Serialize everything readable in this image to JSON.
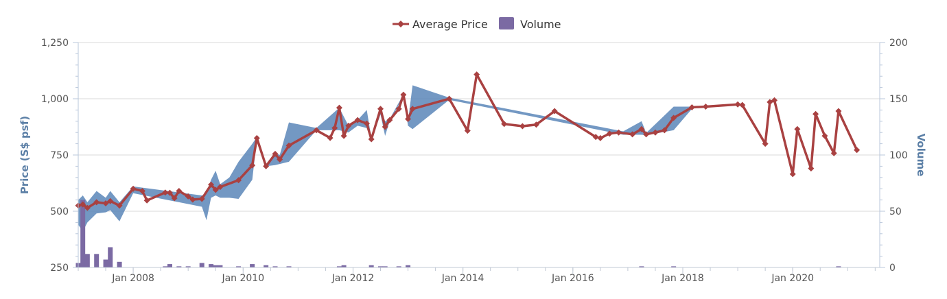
{
  "legend": {
    "price_label": "Average Price",
    "volume_label": "Volume"
  },
  "colors": {
    "price": "#a94141",
    "band": "#5b86b8",
    "volume": "#7b6aa3",
    "grid": "#d8d8d8",
    "axis": "#b9c7db",
    "axis_title": "#5b7fa6"
  },
  "chart_data": {
    "type": "line",
    "x_axis": {
      "type": "date",
      "range": [
        "2007-01-01",
        "2021-08-01"
      ],
      "tick_labels": [
        "Jan 2008",
        "Jan 2010",
        "Jan 2012",
        "Jan 2014",
        "Jan 2016",
        "Jan 2018",
        "Jan 2020"
      ]
    },
    "y_axis_left": {
      "label": "Price (S$ psf)",
      "range": [
        250,
        1250
      ],
      "ticks": [
        "250",
        "500",
        "750",
        "1,000",
        "1,250"
      ]
    },
    "y_axis_right": {
      "label": "Volume",
      "range": [
        0,
        200
      ],
      "ticks": [
        "0",
        "50",
        "100",
        "150",
        "200"
      ]
    },
    "grid": true,
    "legend_position": "top-center",
    "series": [
      {
        "name": "Average Price",
        "kind": "line-with-markers",
        "points": [
          [
            "2007-01",
            525
          ],
          [
            "2007-02",
            530
          ],
          [
            "2007-03",
            515
          ],
          [
            "2007-05",
            540
          ],
          [
            "2007-07",
            535
          ],
          [
            "2007-08",
            545
          ],
          [
            "2007-10",
            525
          ],
          [
            "2008-01",
            600
          ],
          [
            "2008-03",
            590
          ],
          [
            "2008-04",
            548
          ],
          [
            "2008-08",
            583
          ],
          [
            "2008-09",
            582
          ],
          [
            "2008-10",
            558
          ],
          [
            "2008-11",
            590
          ],
          [
            "2009-01",
            566
          ],
          [
            "2009-02",
            552
          ],
          [
            "2009-04",
            555
          ],
          [
            "2009-06",
            618
          ],
          [
            "2009-07",
            595
          ],
          [
            "2009-08",
            608
          ],
          [
            "2009-12",
            638
          ],
          [
            "2010-03",
            704
          ],
          [
            "2010-04",
            825
          ],
          [
            "2010-06",
            700
          ],
          [
            "2010-08",
            755
          ],
          [
            "2010-09",
            730
          ],
          [
            "2010-11",
            792
          ],
          [
            "2011-05",
            860
          ],
          [
            "2011-08",
            826
          ],
          [
            "2011-09",
            870
          ],
          [
            "2011-10",
            960
          ],
          [
            "2011-11",
            835
          ],
          [
            "2011-12",
            880
          ],
          [
            "2012-02",
            905
          ],
          [
            "2012-04",
            890
          ],
          [
            "2012-05",
            820
          ],
          [
            "2012-07",
            955
          ],
          [
            "2012-08",
            875
          ],
          [
            "2012-09",
            905
          ],
          [
            "2012-11",
            955
          ],
          [
            "2012-12",
            1018
          ],
          [
            "2013-01",
            910
          ],
          [
            "2013-02",
            955
          ],
          [
            "2013-10",
            1000
          ],
          [
            "2014-02",
            858
          ],
          [
            "2014-04",
            1108
          ],
          [
            "2014-10",
            888
          ],
          [
            "2015-02",
            878
          ],
          [
            "2015-05",
            885
          ],
          [
            "2015-09",
            945
          ],
          [
            "2016-06",
            830
          ],
          [
            "2016-07",
            825
          ],
          [
            "2016-09",
            845
          ],
          [
            "2016-11",
            850
          ],
          [
            "2017-02",
            842
          ],
          [
            "2017-04",
            865
          ],
          [
            "2017-05",
            842
          ],
          [
            "2017-07",
            850
          ],
          [
            "2017-09",
            860
          ],
          [
            "2017-11",
            915
          ],
          [
            "2018-03",
            962
          ],
          [
            "2018-06",
            965
          ],
          [
            "2019-01",
            975
          ],
          [
            "2019-02",
            972
          ],
          [
            "2019-07",
            800
          ],
          [
            "2019-08",
            985
          ],
          [
            "2019-09",
            993
          ],
          [
            "2020-01",
            665
          ],
          [
            "2020-02",
            865
          ],
          [
            "2020-05",
            690
          ],
          [
            "2020-06",
            932
          ],
          [
            "2020-08",
            835
          ],
          [
            "2020-10",
            758
          ],
          [
            "2020-11",
            945
          ],
          [
            "2021-03",
            772
          ]
        ]
      },
      {
        "kind": "range-band",
        "points": [
          [
            "2007-01",
            440,
            550
          ],
          [
            "2007-02",
            410,
            570
          ],
          [
            "2007-03",
            450,
            540
          ],
          [
            "2007-05",
            490,
            590
          ],
          [
            "2007-07",
            495,
            560
          ],
          [
            "2007-08",
            505,
            590
          ],
          [
            "2007-10",
            455,
            540
          ],
          [
            "2008-01",
            580,
            610
          ],
          [
            "2009-04",
            520,
            570
          ],
          [
            "2009-05",
            460,
            580
          ],
          [
            "2009-06",
            560,
            640
          ],
          [
            "2009-07",
            570,
            680
          ],
          [
            "2009-08",
            560,
            620
          ],
          [
            "2009-10",
            560,
            650
          ],
          [
            "2009-12",
            555,
            720
          ],
          [
            "2010-03",
            640,
            800
          ],
          [
            "2010-04",
            820,
            830
          ],
          [
            "2010-06",
            700,
            710
          ],
          [
            "2010-08",
            705,
            760
          ],
          [
            "2010-09",
            710,
            750
          ],
          [
            "2010-11",
            720,
            895
          ],
          [
            "2011-05",
            860,
            870
          ],
          [
            "2011-10",
            860,
            960
          ],
          [
            "2011-12",
            850,
            880
          ],
          [
            "2012-02",
            880,
            905
          ],
          [
            "2012-04",
            870,
            950
          ],
          [
            "2012-05",
            815,
            825
          ],
          [
            "2012-07",
            930,
            960
          ],
          [
            "2012-08",
            835,
            900
          ],
          [
            "2012-09",
            900,
            910
          ],
          [
            "2012-12",
            1010,
            1020
          ],
          [
            "2013-01",
            880,
            900
          ],
          [
            "2013-02",
            865,
            1060
          ],
          [
            "2013-10",
            995,
            1005
          ],
          [
            "2016-12",
            840,
            855
          ],
          [
            "2017-04",
            840,
            900
          ],
          [
            "2017-05",
            838,
            848
          ],
          [
            "2017-11",
            860,
            965
          ],
          [
            "2018-03",
            955,
            965
          ]
        ]
      },
      {
        "name": "Volume",
        "kind": "column",
        "axis": "right",
        "points": [
          [
            "2007-01",
            4
          ],
          [
            "2007-02",
            60
          ],
          [
            "2007-03",
            12
          ],
          [
            "2007-05",
            12
          ],
          [
            "2007-07",
            7
          ],
          [
            "2007-08",
            18
          ],
          [
            "2007-10",
            5
          ],
          [
            "2008-08",
            1
          ],
          [
            "2008-09",
            3
          ],
          [
            "2008-11",
            1
          ],
          [
            "2009-01",
            1
          ],
          [
            "2009-04",
            4
          ],
          [
            "2009-06",
            3
          ],
          [
            "2009-07",
            2
          ],
          [
            "2009-08",
            2
          ],
          [
            "2009-12",
            1
          ],
          [
            "2010-03",
            3
          ],
          [
            "2010-06",
            2
          ],
          [
            "2010-08",
            1
          ],
          [
            "2010-11",
            1
          ],
          [
            "2011-10",
            1
          ],
          [
            "2011-11",
            2
          ],
          [
            "2012-05",
            2
          ],
          [
            "2012-07",
            1
          ],
          [
            "2012-08",
            1
          ],
          [
            "2012-11",
            1
          ],
          [
            "2013-01",
            2
          ],
          [
            "2017-04",
            1
          ],
          [
            "2017-11",
            1
          ],
          [
            "2020-11",
            1
          ]
        ]
      }
    ]
  }
}
